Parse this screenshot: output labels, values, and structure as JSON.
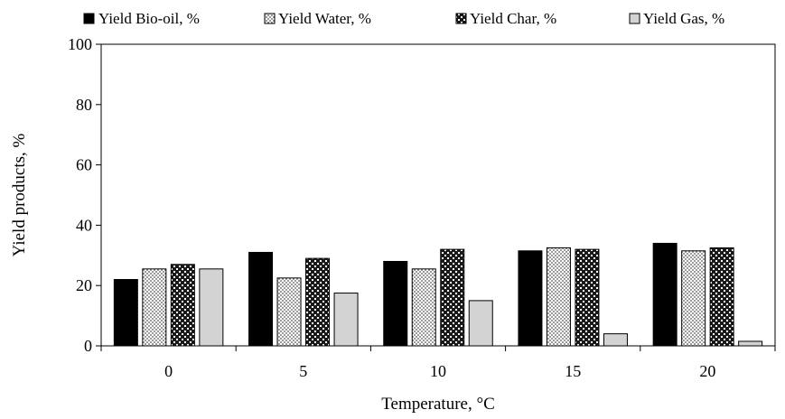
{
  "chart_data": {
    "type": "bar",
    "xlabel": "Temperature, °C",
    "ylabel": "Yield products, %",
    "ylim": [
      0,
      100
    ],
    "yticks": [
      0,
      20,
      40,
      60,
      80,
      100
    ],
    "categories": [
      "0",
      "5",
      "10",
      "15",
      "20"
    ],
    "grid": false,
    "legend_position": "top",
    "series": [
      {
        "name": "Yield Bio-oil, %",
        "pattern": "solid-black",
        "values": [
          22,
          31,
          28,
          31.5,
          34
        ]
      },
      {
        "name": "Yield Water, %",
        "pattern": "dotted-light",
        "values": [
          25.5,
          22.5,
          25.5,
          32.5,
          31.5
        ]
      },
      {
        "name": "Yield Char, %",
        "pattern": "checker-dark",
        "values": [
          27,
          29,
          32,
          32,
          32.5
        ]
      },
      {
        "name": "Yield Gas, %",
        "pattern": "solid-gray",
        "values": [
          25.5,
          17.5,
          15,
          4,
          1.5
        ]
      }
    ]
  }
}
